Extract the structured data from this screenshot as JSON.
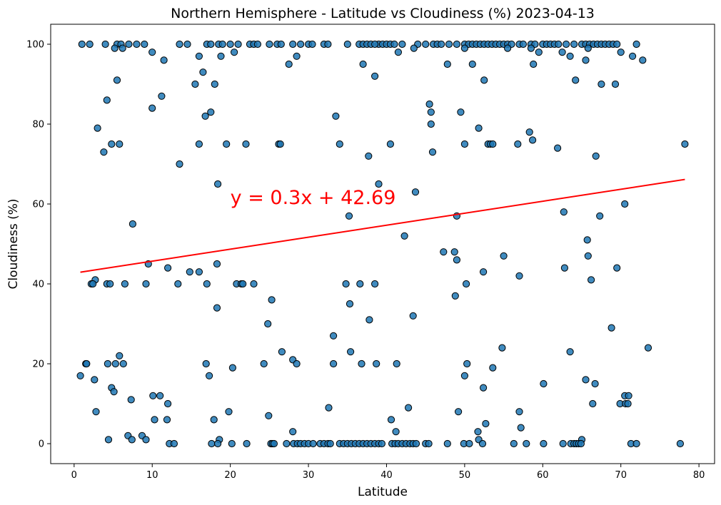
{
  "chart_data": {
    "type": "scatter",
    "title": "Northern Hemisphere - Latitude vs Cloudiness (%) 2023-04-13",
    "xlabel": "Latitude",
    "ylabel": "Cloudiness (%)",
    "xlim": [
      -3,
      82
    ],
    "ylim": [
      -5,
      105
    ],
    "xticks": [
      "0",
      "10",
      "20",
      "30",
      "40",
      "50",
      "60",
      "70",
      "80"
    ],
    "yticks": [
      "0",
      "20",
      "40",
      "60",
      "80",
      "100"
    ],
    "grid": false,
    "marker_color": "#1f77b4",
    "regression": {
      "equation": "y = 0.3x + 42.69",
      "slope": 0.3,
      "intercept": 42.69,
      "x_range": [
        0.8,
        78.2
      ],
      "color": "#ff0000",
      "label_position": [
        20,
        60
      ]
    },
    "points": [
      [
        1,
        100
      ],
      [
        2,
        100
      ],
      [
        4,
        100
      ],
      [
        5.5,
        100
      ],
      [
        6,
        100
      ],
      [
        7,
        100
      ],
      [
        8,
        100
      ],
      [
        9,
        100
      ],
      [
        13.5,
        100
      ],
      [
        14.5,
        100
      ],
      [
        17,
        100
      ],
      [
        17.5,
        100
      ],
      [
        18.5,
        100
      ],
      [
        19,
        100
      ],
      [
        20,
        100
      ],
      [
        21,
        100
      ],
      [
        22.5,
        100
      ],
      [
        23,
        100
      ],
      [
        23.5,
        100
      ],
      [
        25,
        100
      ],
      [
        26,
        100
      ],
      [
        26.5,
        100
      ],
      [
        28,
        100
      ],
      [
        29,
        100
      ],
      [
        30,
        100
      ],
      [
        30.5,
        100
      ],
      [
        32,
        100
      ],
      [
        32.5,
        100
      ],
      [
        35,
        100
      ],
      [
        36.5,
        100
      ],
      [
        37,
        100
      ],
      [
        37.5,
        100
      ],
      [
        38,
        100
      ],
      [
        39,
        100
      ],
      [
        39.5,
        100
      ],
      [
        40,
        100
      ],
      [
        40.5,
        100
      ],
      [
        41,
        100
      ],
      [
        42,
        100
      ],
      [
        44,
        100
      ],
      [
        45,
        100
      ],
      [
        46,
        100
      ],
      [
        46.5,
        100
      ],
      [
        47,
        100
      ],
      [
        48,
        100
      ],
      [
        49,
        100
      ],
      [
        50,
        100
      ],
      [
        50.5,
        100
      ],
      [
        51,
        100
      ],
      [
        51.5,
        100
      ],
      [
        52,
        100
      ],
      [
        52.5,
        100
      ],
      [
        53,
        100
      ],
      [
        53.5,
        100
      ],
      [
        54,
        100
      ],
      [
        54.5,
        100
      ],
      [
        55,
        100
      ],
      [
        55.5,
        100
      ],
      [
        56,
        100
      ],
      [
        57,
        100
      ],
      [
        57.5,
        100
      ],
      [
        58.5,
        100
      ],
      [
        59,
        100
      ],
      [
        60,
        100
      ],
      [
        60.5,
        100
      ],
      [
        61,
        100
      ],
      [
        61.5,
        100
      ],
      [
        62,
        100
      ],
      [
        63,
        100
      ],
      [
        64,
        100
      ],
      [
        65,
        100
      ],
      [
        65.5,
        100
      ],
      [
        66,
        100
      ],
      [
        66.5,
        100
      ],
      [
        67,
        100
      ],
      [
        67.5,
        100
      ],
      [
        68,
        100
      ],
      [
        68.5,
        100
      ],
      [
        69,
        100
      ],
      [
        69.5,
        100
      ],
      [
        72,
        100
      ],
      [
        5.2,
        99
      ],
      [
        6.2,
        99
      ],
      [
        38.5,
        100
      ],
      [
        43.5,
        99
      ],
      [
        50,
        99
      ],
      [
        55.5,
        99
      ],
      [
        58.5,
        99
      ],
      [
        65.8,
        99
      ],
      [
        10,
        98
      ],
      [
        20.5,
        98
      ],
      [
        41.5,
        98
      ],
      [
        59.5,
        98
      ],
      [
        62.5,
        98
      ],
      [
        70,
        98
      ],
      [
        16,
        97
      ],
      [
        18.8,
        97
      ],
      [
        28.5,
        97
      ],
      [
        63.5,
        97
      ],
      [
        71.5,
        97
      ],
      [
        11.5,
        96
      ],
      [
        65.5,
        96
      ],
      [
        72.8,
        96
      ],
      [
        27.5,
        95
      ],
      [
        37,
        95
      ],
      [
        47.8,
        95
      ],
      [
        51,
        95
      ],
      [
        58.8,
        95
      ],
      [
        5.5,
        91
      ],
      [
        52.5,
        91
      ],
      [
        64.2,
        91
      ],
      [
        15.5,
        90
      ],
      [
        18,
        90
      ],
      [
        67.5,
        90
      ],
      [
        69.3,
        90
      ],
      [
        38.5,
        92
      ],
      [
        16.5,
        93
      ],
      [
        4.2,
        86
      ],
      [
        11.2,
        87
      ],
      [
        10,
        84
      ],
      [
        45.5,
        85
      ],
      [
        45.7,
        83
      ],
      [
        17.5,
        83
      ],
      [
        16.8,
        82
      ],
      [
        33.5,
        82
      ],
      [
        49.5,
        83
      ],
      [
        3,
        79
      ],
      [
        45.7,
        80
      ],
      [
        51.8,
        79
      ],
      [
        58.3,
        78
      ],
      [
        58.7,
        76
      ],
      [
        3.8,
        73
      ],
      [
        4.8,
        75
      ],
      [
        5.8,
        75
      ],
      [
        16,
        75
      ],
      [
        19.5,
        75
      ],
      [
        22,
        75
      ],
      [
        26.2,
        75
      ],
      [
        26.4,
        75
      ],
      [
        34,
        75
      ],
      [
        40.5,
        75
      ],
      [
        50,
        75
      ],
      [
        53,
        75
      ],
      [
        53.3,
        75
      ],
      [
        53.6,
        75
      ],
      [
        56.8,
        75
      ],
      [
        61.9,
        74
      ],
      [
        66.8,
        72
      ],
      [
        37.7,
        72
      ],
      [
        45.9,
        73
      ],
      [
        78.2,
        75
      ],
      [
        13.5,
        70
      ],
      [
        18.4,
        65
      ],
      [
        39,
        65
      ],
      [
        43.7,
        63
      ],
      [
        70.5,
        60
      ],
      [
        62.7,
        58
      ],
      [
        35.2,
        57
      ],
      [
        49,
        57
      ],
      [
        67.3,
        57
      ],
      [
        7.5,
        55
      ],
      [
        42.3,
        52
      ],
      [
        65.7,
        51
      ],
      [
        47.3,
        48
      ],
      [
        48.7,
        48
      ],
      [
        55,
        47
      ],
      [
        65.8,
        47
      ],
      [
        49,
        46
      ],
      [
        9.5,
        45
      ],
      [
        18.3,
        45
      ],
      [
        12,
        44
      ],
      [
        52.4,
        43
      ],
      [
        62.8,
        44
      ],
      [
        69.5,
        44
      ],
      [
        14.8,
        43
      ],
      [
        16,
        43
      ],
      [
        57,
        42
      ],
      [
        2.7,
        41
      ],
      [
        66.2,
        41
      ],
      [
        2.2,
        40
      ],
      [
        2.4,
        40
      ],
      [
        4.2,
        40
      ],
      [
        4.6,
        40
      ],
      [
        6.5,
        40
      ],
      [
        9.2,
        40
      ],
      [
        13.3,
        40
      ],
      [
        17,
        40
      ],
      [
        20.8,
        40
      ],
      [
        21.4,
        40
      ],
      [
        21.6,
        40
      ],
      [
        23,
        40
      ],
      [
        34.8,
        40
      ],
      [
        36.6,
        40
      ],
      [
        38.5,
        40
      ],
      [
        50.2,
        40
      ],
      [
        48.8,
        37
      ],
      [
        25.3,
        36
      ],
      [
        35.3,
        35
      ],
      [
        18.3,
        34
      ],
      [
        43.4,
        32
      ],
      [
        37.8,
        31
      ],
      [
        24.8,
        30
      ],
      [
        68.8,
        29
      ],
      [
        33.2,
        27
      ],
      [
        73.5,
        24
      ],
      [
        54.8,
        24
      ],
      [
        35.4,
        23
      ],
      [
        26.6,
        23
      ],
      [
        63.5,
        23
      ],
      [
        28,
        21
      ],
      [
        0.8,
        17
      ],
      [
        1.5,
        20
      ],
      [
        1.6,
        20
      ],
      [
        4.3,
        20
      ],
      [
        5.3,
        20
      ],
      [
        6.3,
        20
      ],
      [
        5.8,
        22
      ],
      [
        16.9,
        20
      ],
      [
        20.3,
        19
      ],
      [
        24.3,
        20
      ],
      [
        28.5,
        20
      ],
      [
        33.2,
        20
      ],
      [
        36.8,
        20
      ],
      [
        38.7,
        20
      ],
      [
        41.3,
        20
      ],
      [
        50.3,
        20
      ],
      [
        53.6,
        19
      ],
      [
        17.3,
        17
      ],
      [
        50,
        17
      ],
      [
        65.5,
        16
      ],
      [
        66.7,
        15
      ],
      [
        60.1,
        15
      ],
      [
        2.6,
        16
      ],
      [
        4.8,
        14
      ],
      [
        5.1,
        13
      ],
      [
        52.4,
        14
      ],
      [
        10.1,
        12
      ],
      [
        11,
        12
      ],
      [
        70.5,
        12
      ],
      [
        71,
        12
      ],
      [
        7.3,
        11
      ],
      [
        12,
        10
      ],
      [
        66.4,
        10
      ],
      [
        69.9,
        10
      ],
      [
        70.6,
        10
      ],
      [
        70.9,
        10
      ],
      [
        32.6,
        9
      ],
      [
        42.8,
        9
      ],
      [
        2.8,
        8
      ],
      [
        19.8,
        8
      ],
      [
        49.2,
        8
      ],
      [
        57,
        8
      ],
      [
        24.9,
        7
      ],
      [
        10.3,
        6
      ],
      [
        11.9,
        6
      ],
      [
        17.9,
        6
      ],
      [
        40.6,
        6
      ],
      [
        52.7,
        5
      ],
      [
        57.2,
        4
      ],
      [
        28,
        3
      ],
      [
        41.2,
        3
      ],
      [
        51.7,
        3
      ],
      [
        6.9,
        2
      ],
      [
        8.7,
        2
      ],
      [
        4.4,
        1
      ],
      [
        7.4,
        1
      ],
      [
        9.2,
        1
      ],
      [
        18.6,
        1
      ],
      [
        51.8,
        1
      ],
      [
        65,
        1
      ],
      [
        12.2,
        0
      ],
      [
        12.8,
        0
      ],
      [
        17.6,
        0
      ],
      [
        18.4,
        0
      ],
      [
        20.2,
        0
      ],
      [
        22.1,
        0
      ],
      [
        25.2,
        0
      ],
      [
        25.4,
        0
      ],
      [
        25.6,
        0
      ],
      [
        27.2,
        0
      ],
      [
        28.1,
        0
      ],
      [
        28.6,
        0
      ],
      [
        29,
        0
      ],
      [
        29.5,
        0
      ],
      [
        30,
        0
      ],
      [
        30.6,
        0
      ],
      [
        31.5,
        0
      ],
      [
        32,
        0
      ],
      [
        32.5,
        0
      ],
      [
        32.8,
        0
      ],
      [
        34,
        0
      ],
      [
        34.5,
        0
      ],
      [
        35,
        0
      ],
      [
        35.5,
        0
      ],
      [
        36,
        0
      ],
      [
        36.5,
        0
      ],
      [
        37,
        0
      ],
      [
        37.5,
        0
      ],
      [
        38,
        0
      ],
      [
        38.5,
        0
      ],
      [
        39,
        0
      ],
      [
        39.4,
        0
      ],
      [
        40.7,
        0
      ],
      [
        41.1,
        0
      ],
      [
        41.5,
        0
      ],
      [
        42,
        0
      ],
      [
        42.5,
        0
      ],
      [
        43,
        0
      ],
      [
        43.4,
        0
      ],
      [
        43.8,
        0
      ],
      [
        45,
        0
      ],
      [
        45.4,
        0
      ],
      [
        47.8,
        0
      ],
      [
        49.9,
        0
      ],
      [
        50.6,
        0
      ],
      [
        52.3,
        0
      ],
      [
        56.3,
        0
      ],
      [
        57.9,
        0
      ],
      [
        60.1,
        0
      ],
      [
        62.6,
        0
      ],
      [
        63.6,
        0
      ],
      [
        64,
        0
      ],
      [
        64.3,
        0
      ],
      [
        64.6,
        0
      ],
      [
        64.9,
        0
      ],
      [
        71.3,
        0
      ],
      [
        72,
        0
      ],
      [
        77.6,
        0
      ]
    ]
  }
}
